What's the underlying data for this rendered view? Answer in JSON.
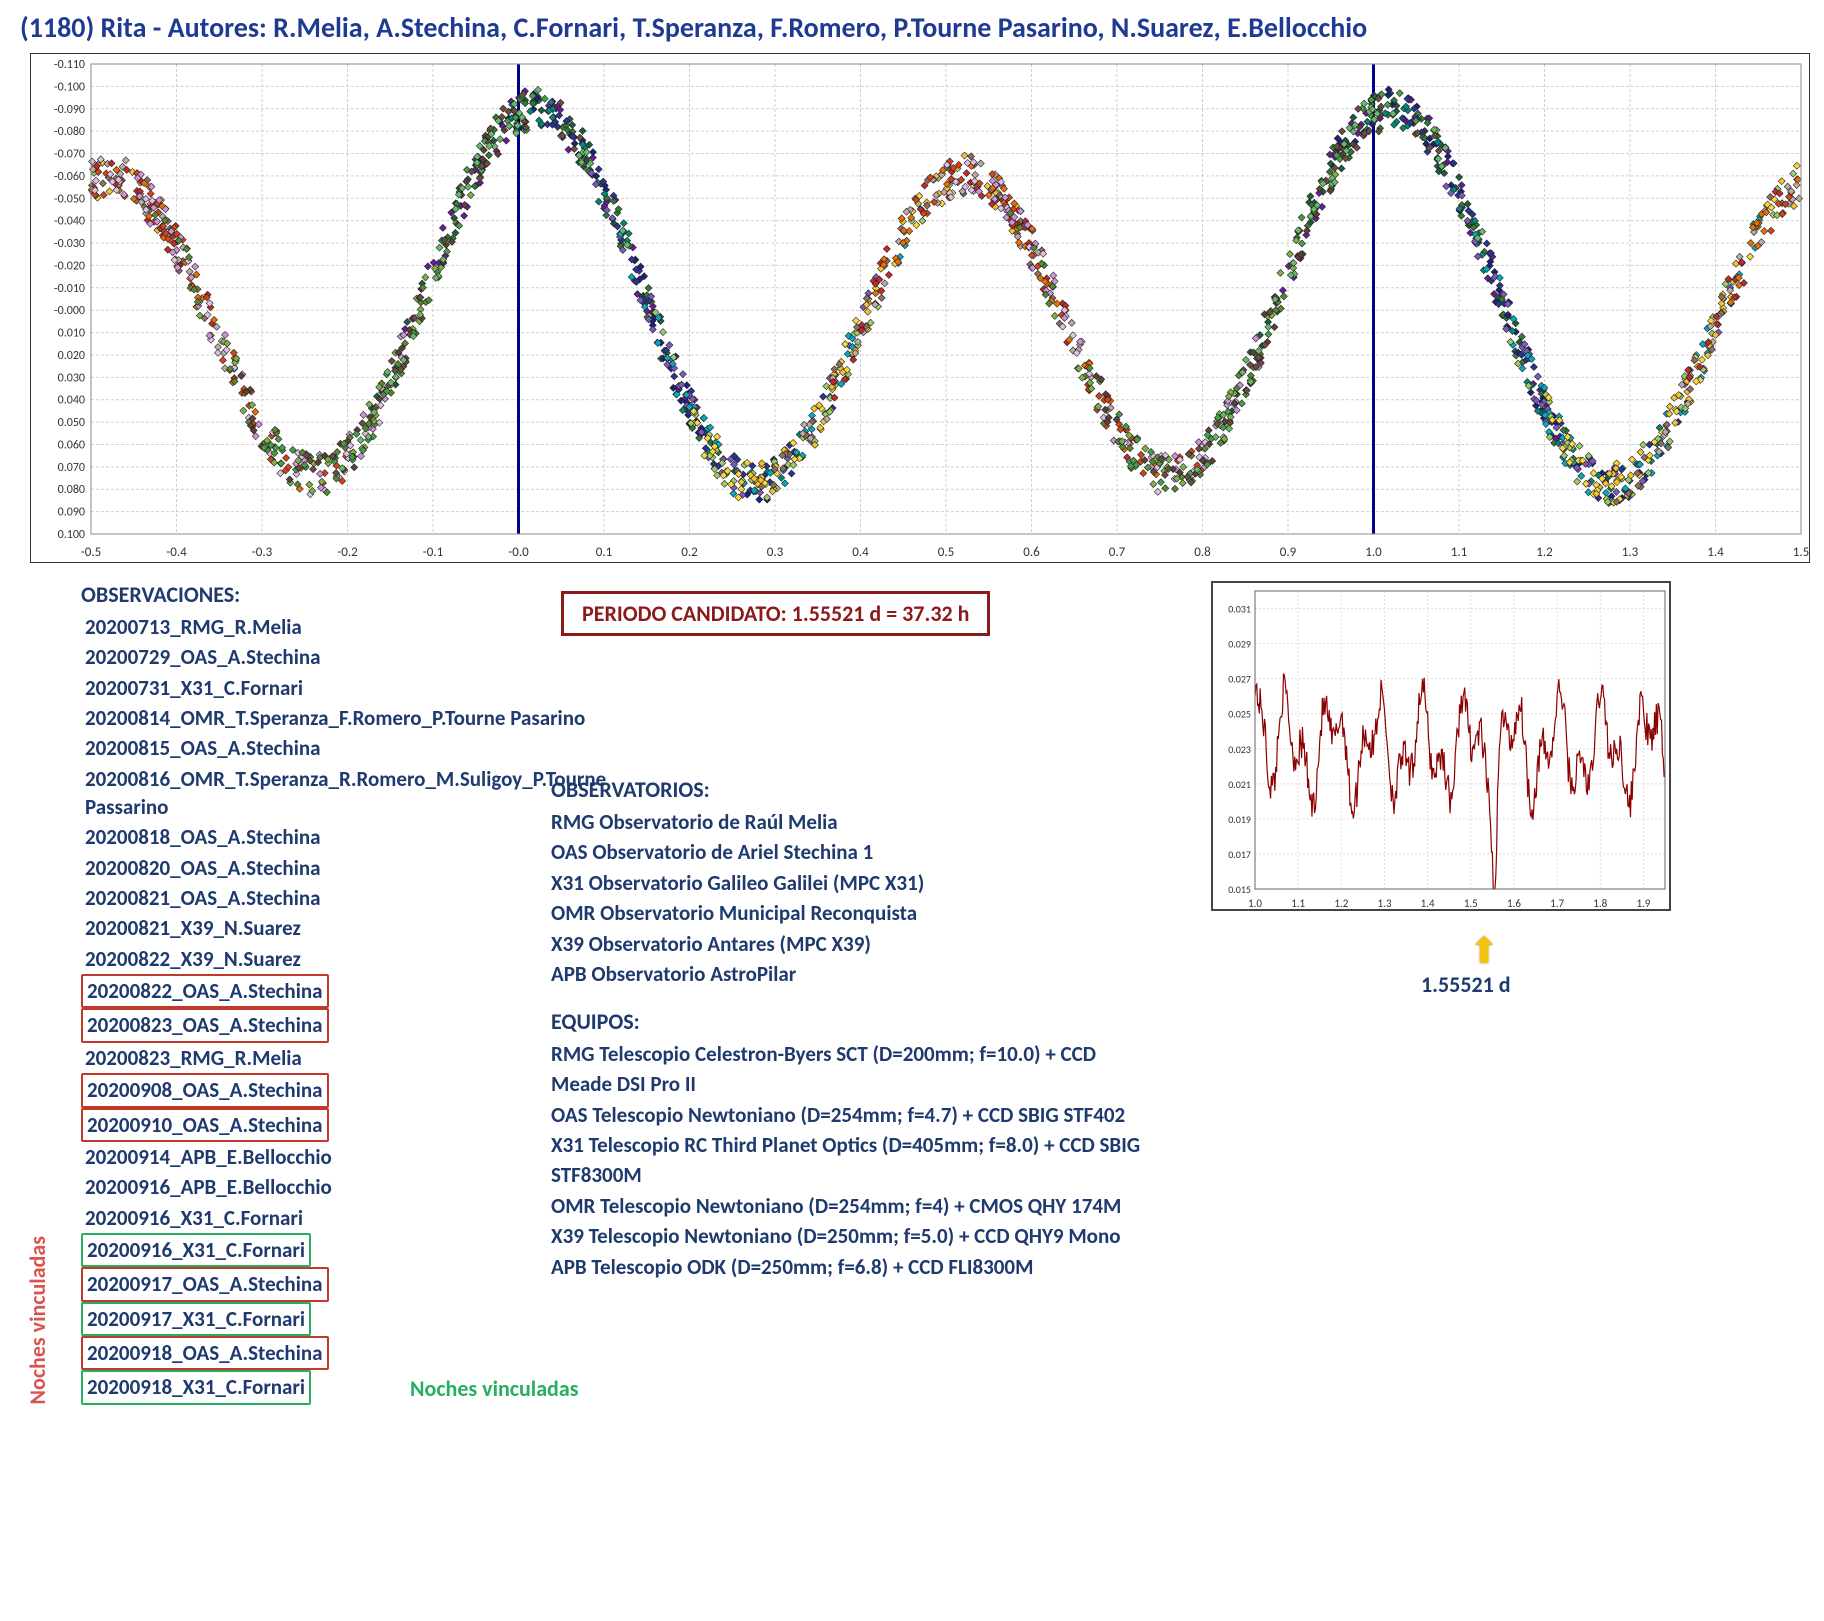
{
  "title": "(1180) Rita - Autores: R.Melia, A.Stechina, C.Fornari, T.Speranza, F.Romero, P.Tourne Pasarino, N.Suarez, E.Bellocchio",
  "main_chart": {
    "type": "scatter",
    "xlim": [
      -0.5,
      1.5
    ],
    "xtick_step": 0.1,
    "ylim": [
      0.1,
      -0.11
    ],
    "ytick_step": 0.01,
    "y_inverted": true,
    "background_color": "#ffffff",
    "grid_color": "#d0d0d0",
    "grid_dash": "3,2",
    "phase_lines_x": [
      0.0,
      1.0
    ],
    "phase_line_color": "#00008b",
    "phase_line_width": 3,
    "marker_style": "diamond",
    "marker_size": 7,
    "marker_stroke": "#222",
    "series_colors": {
      "RMG_0713": "#1b5e3e",
      "OAS_0729": "#6a1b9a",
      "X31_0731": "#2e7d32",
      "OMR_0814": "#1a237e",
      "OAS_0815": "#00897b",
      "OMR_0816": "#283593",
      "OAS_0818": "#7e57c2",
      "OAS_0820": "#00acc1",
      "OAS_0821": "#9ccc65",
      "X39_0821": "#fdd835",
      "X39_0822": "#fbc02d",
      "OAS_0822": "#8d6e63",
      "OAS_0823": "#bcaaa4",
      "RMG_0823": "#c62828",
      "OAS_0908": "#ef6c00",
      "OAS_0910": "#d84315",
      "APB_0914": "#e1bee7",
      "APB_0916": "#ce93d8",
      "X31_0916a": "#558b2f",
      "X31_0916b": "#7cb342",
      "OAS_0917": "#5d4037",
      "X31_0917": "#43a047",
      "OAS_0918": "#6d4c41",
      "X31_0918": "#66bb6a"
    },
    "curve_shape_notes": "Double-peaked phased lightcurve; minima near phase 0.05 and 1.05 (~0.06 mag), maxima near 0.5 and 1.5 (~ -0.09 mag); amplitude ≈0.15 mag"
  },
  "periodo_box": "PERIODO CANDIDATO: 1.55521 d = 37.32 h",
  "observaciones_header": "OBSERVACIONES:",
  "observaciones": [
    {
      "t": "20200713_RMG_R.Melia"
    },
    {
      "t": "20200729_OAS_A.Stechina"
    },
    {
      "t": "20200731_X31_C.Fornari"
    },
    {
      "t": "20200814_OMR_T.Speranza_F.Romero_P.Tourne Pasarino"
    },
    {
      "t": "20200815_OAS_A.Stechina"
    },
    {
      "t": "20200816_OMR_T.Speranza_R.Romero_M.Suligoy_P.Tourne Passarino"
    },
    {
      "t": "20200818_OAS_A.Stechina"
    },
    {
      "t": "20200820_OAS_A.Stechina"
    },
    {
      "t": "20200821_OAS_A.Stechina"
    },
    {
      "t": "20200821_X39_N.Suarez"
    },
    {
      "t": "20200822_X39_N.Suarez"
    },
    {
      "t": "20200822_OAS_A.Stechina",
      "box": "red"
    },
    {
      "t": "20200823_OAS_A.Stechina",
      "box": "red"
    },
    {
      "t": "20200823_RMG_R.Melia"
    },
    {
      "t": "20200908_OAS_A.Stechina",
      "box": "red"
    },
    {
      "t": "20200910_OAS_A.Stechina",
      "box": "red"
    },
    {
      "t": "20200914_APB_E.Bellocchio"
    },
    {
      "t": "20200916_APB_E.Bellocchio"
    },
    {
      "t": "20200916_X31_C.Fornari"
    },
    {
      "t": "20200916_X31_C.Fornari",
      "box": "green"
    },
    {
      "t": "20200917_OAS_A.Stechina",
      "box": "red"
    },
    {
      "t": "20200917_X31_C.Fornari",
      "box": "green"
    },
    {
      "t": "20200918_OAS_A.Stechina",
      "box": "red"
    },
    {
      "t": "20200918_X31_C.Fornari",
      "box": "green"
    }
  ],
  "noches_rojo": "Noches vinculadas",
  "noches_verde": "Noches vinculadas",
  "observatorios_header": "OBSERVATORIOS:",
  "observatorios": [
    "RMG Observatorio de Raúl Melia",
    "OAS Observatorio de Ariel Stechina 1",
    "X31 Observatorio Galileo Galilei (MPC X31)",
    "OMR Observatorio Municipal Reconquista",
    "X39 Observatorio Antares (MPC X39)",
    "APB Observatorio AstroPilar"
  ],
  "equipos_header": "EQUIPOS:",
  "equipos": [
    "RMG Telescopio Celestron-Byers SCT (D=200mm; f=10.0) + CCD Meade DSI Pro II",
    "OAS Telescopio Newtoniano (D=254mm; f=4.7) + CCD SBIG STF402",
    "X31 Telescopio RC Third Planet Optics (D=405mm; f=8.0) + CCD SBIG STF8300M",
    "OMR Telescopio Newtoniano (D=254mm; f=4) + CMOS QHY 174M",
    "X39 Telescopio Newtoniano (D=250mm; f=5.0) + CCD QHY9 Mono",
    "APB Telescopio ODK (D=250mm; f=6.8) + CCD FLI8300M"
  ],
  "periodogram": {
    "type": "line",
    "xlim": [
      1.0,
      1.95
    ],
    "xtick_step": 0.1,
    "ylim": [
      0.015,
      0.032
    ],
    "ytick_step": 0.002,
    "line_color": "#8b0000",
    "point_color": "#b22222",
    "min_at_x": 1.55521,
    "min_y": 0.0155,
    "label": "1.55521 d"
  }
}
